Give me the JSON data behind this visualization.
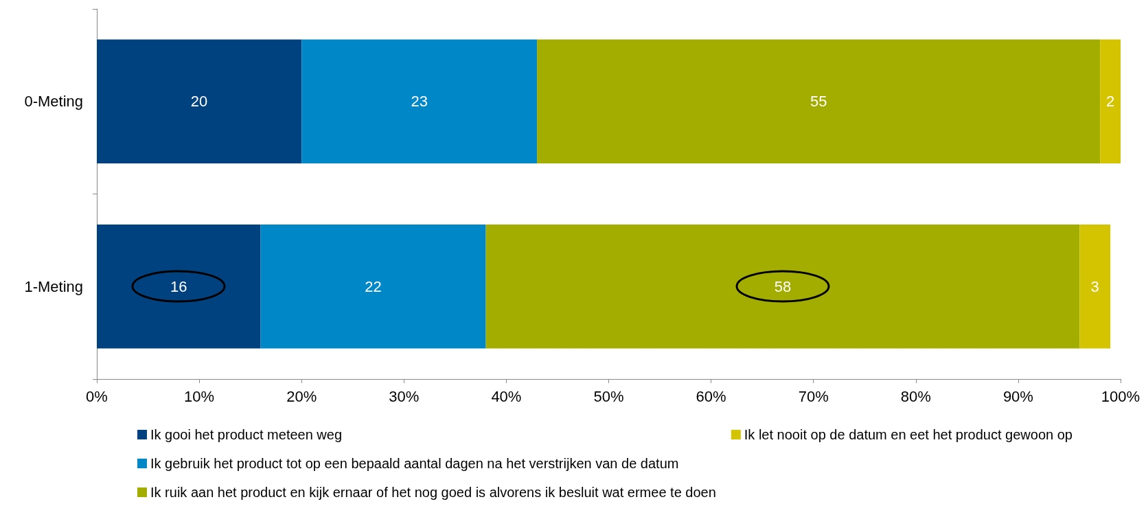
{
  "chart_data": {
    "type": "bar",
    "orientation": "horizontal",
    "stacked": true,
    "categories": [
      "0-Meting",
      "1-Meting"
    ],
    "series": [
      {
        "name": "Ik gooi het product meteen weg",
        "color": "#00427f",
        "values": [
          20,
          16
        ]
      },
      {
        "name": "Ik gebruik het product tot op een bepaald aantal dagen na het verstrijken van de datum",
        "color": "#0087c8",
        "values": [
          23,
          22
        ]
      },
      {
        "name": "Ik ruik aan het product en kijk ernaar of het nog goed is alvorens ik besluit wat ermee te doen",
        "color": "#a2ad00",
        "values": [
          55,
          58
        ]
      },
      {
        "name": "Ik let nooit op de datum en eet het product gewoon op",
        "color": "#d4c400",
        "values": [
          2,
          3
        ]
      }
    ],
    "xlim": [
      0,
      100
    ],
    "xticks": [
      {
        "value": 0,
        "label": "0%"
      },
      {
        "value": 10,
        "label": "10%"
      },
      {
        "value": 20,
        "label": "20%"
      },
      {
        "value": 30,
        "label": "30%"
      },
      {
        "value": 40,
        "label": "40%"
      },
      {
        "value": 50,
        "label": "50%"
      },
      {
        "value": 60,
        "label": "60%"
      },
      {
        "value": 70,
        "label": "70%"
      },
      {
        "value": 80,
        "label": "80%"
      },
      {
        "value": 90,
        "label": "90%"
      },
      {
        "value": 100,
        "label": "100%"
      }
    ],
    "data_labels": true,
    "grid": false,
    "legend": "bottom"
  }
}
